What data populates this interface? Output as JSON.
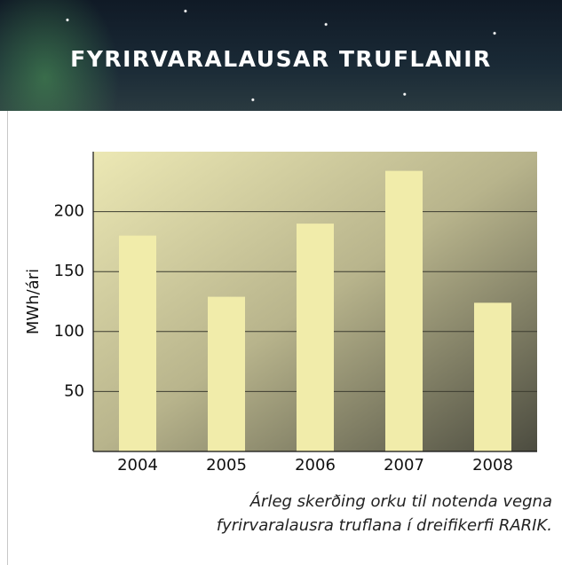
{
  "header": {
    "title": "FYRIRVARALAUSAR TRUFLANIR"
  },
  "chart_data": {
    "type": "bar",
    "y_label": "MWh/ári",
    "categories": [
      "2004",
      "2005",
      "2006",
      "2007",
      "2008"
    ],
    "values": [
      180,
      129,
      190,
      234,
      124
    ],
    "color": "#f1ecaa",
    "ylim": [
      0,
      250
    ],
    "yticks": [
      50,
      100,
      150,
      200
    ],
    "grid": true,
    "caption": [
      "Árleg skerðing orku til notenda vegna",
      "fyrirvaralausra truflana í dreifikerfi RARIK."
    ]
  }
}
